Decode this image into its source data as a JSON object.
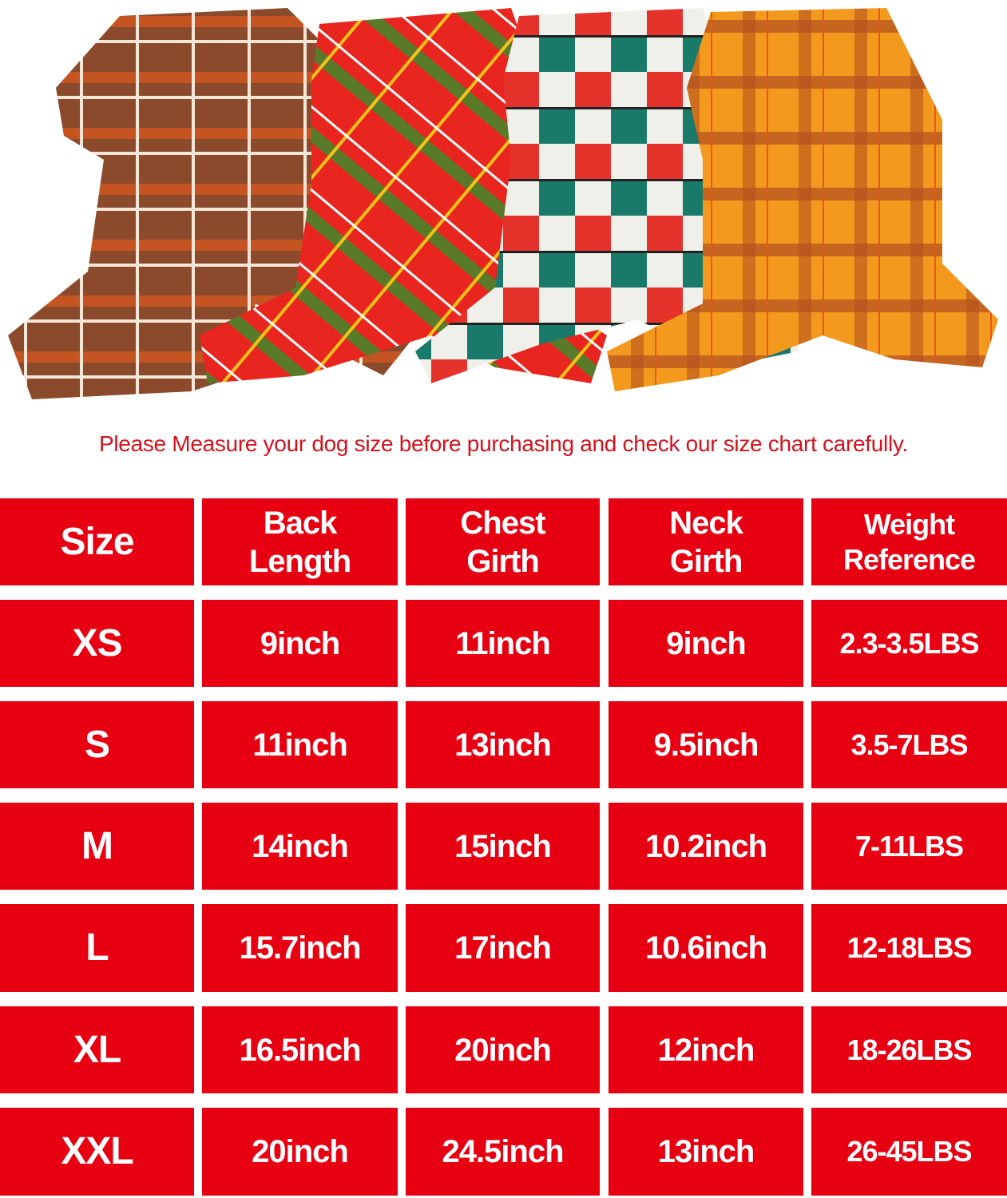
{
  "notice": "Please Measure your dog size before purchasing and check our size chart carefully.",
  "product_image": {
    "description_icon": "plaid-dog-pajamas-photo",
    "colors": [
      "#8b4a2b",
      "#e8261f",
      "#1a7a6a",
      "#f39a1e"
    ]
  },
  "accent_color": "#e60012",
  "table": {
    "headers": [
      "Size",
      "Back Length",
      "Chest Girth",
      "Neck Girth",
      "Weight Reference"
    ],
    "rows": [
      [
        "XS",
        "9inch",
        "11inch",
        "9inch",
        "2.3-3.5LBS"
      ],
      [
        "S",
        "11inch",
        "13inch",
        "9.5inch",
        "3.5-7LBS"
      ],
      [
        "M",
        "14inch",
        "15inch",
        "10.2inch",
        "7-11LBS"
      ],
      [
        "L",
        "15.7inch",
        "17inch",
        "10.6inch",
        "12-18LBS"
      ],
      [
        "XL",
        "16.5inch",
        "20inch",
        "12inch",
        "18-26LBS"
      ],
      [
        "XXL",
        "20inch",
        "24.5inch",
        "13inch",
        "26-45LBS"
      ]
    ]
  }
}
